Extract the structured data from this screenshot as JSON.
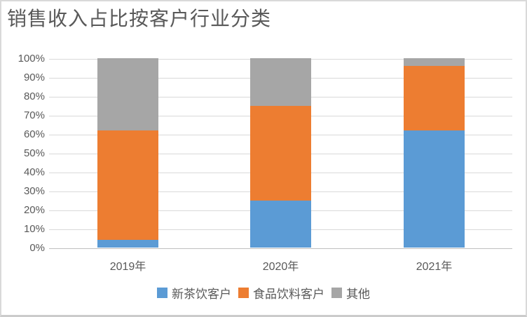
{
  "chart_data": {
    "type": "bar",
    "stacked": true,
    "orientation": "vertical",
    "title": "销售收入占比按客户行业分类",
    "categories": [
      "2019年",
      "2020年",
      "2021年"
    ],
    "series": [
      {
        "name": "新茶饮客户",
        "color": "#5B9BD5",
        "values": [
          4,
          25,
          62
        ]
      },
      {
        "name": "食品饮料客户",
        "color": "#ED7D31",
        "values": [
          58,
          50,
          34
        ]
      },
      {
        "name": "其他",
        "color": "#A6A6A6",
        "values": [
          38,
          25,
          4
        ]
      }
    ],
    "value_unit": "%",
    "y_axis": {
      "min": 0,
      "max": 100,
      "tick_step": 10,
      "tick_labels": [
        "0%",
        "10%",
        "20%",
        "30%",
        "40%",
        "50%",
        "60%",
        "70%",
        "80%",
        "90%",
        "100%"
      ]
    },
    "grid": true,
    "legend_position": "bottom",
    "colors": {
      "text": "#595959",
      "gridline": "#D9D9D9",
      "axis_line": "#BFBFBF",
      "frame_border": "#D9D9D9"
    }
  }
}
